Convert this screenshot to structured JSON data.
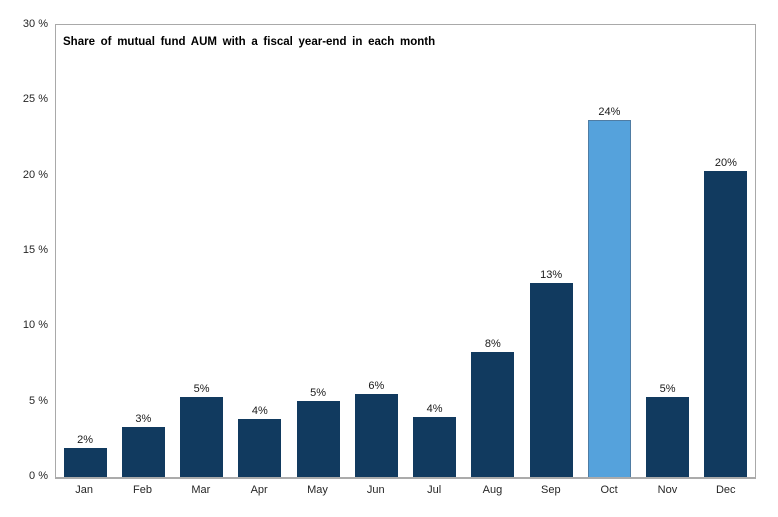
{
  "chart_data": {
    "type": "bar",
    "title": "Share of mutual fund AUM with a fiscal year-end in each month",
    "xlabel": "",
    "ylabel": "",
    "categories": [
      "Jan",
      "Feb",
      "Mar",
      "Apr",
      "May",
      "Jun",
      "Jul",
      "Aug",
      "Sep",
      "Oct",
      "Nov",
      "Dec"
    ],
    "values": [
      2,
      3,
      5,
      4,
      5,
      6,
      4,
      8,
      13,
      24,
      5,
      20
    ],
    "values_precise": [
      1.9,
      3.3,
      5.3,
      3.85,
      5.05,
      5.5,
      4.0,
      8.3,
      12.9,
      23.7,
      5.3,
      20.3
    ],
    "bar_labels": [
      "2%",
      "3%",
      "5%",
      "4%",
      "5%",
      "6%",
      "4%",
      "8%",
      "13%",
      "24%",
      "5%",
      "20%"
    ],
    "highlight_index": 9,
    "ylim": [
      0,
      30
    ],
    "yticks": [
      0,
      5,
      10,
      15,
      20,
      25,
      30
    ],
    "ytick_labels": [
      "0 %",
      "5 %",
      "10 %",
      "15 %",
      "20 %",
      "25 %",
      "30 %"
    ],
    "grid": false,
    "legend": false,
    "colors": {
      "bar": "#113a5f",
      "highlight_bar": "#55a2dc",
      "highlight_border": "#4f7ca3",
      "axis_border": "#a9a9a9",
      "label_text": "#1a1a1a"
    }
  }
}
